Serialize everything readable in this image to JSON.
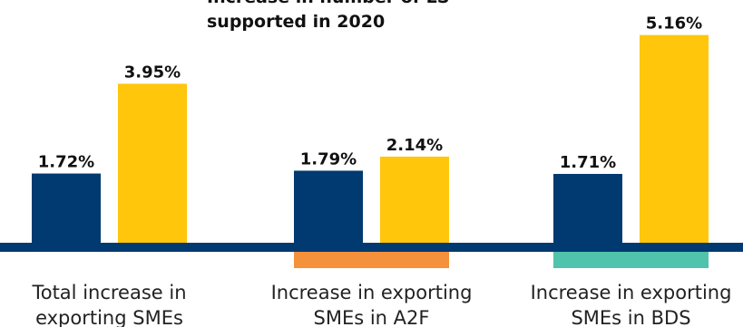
{
  "legend_title_lines": [
    "Increase in number of LS",
    "supported in 2020"
  ],
  "colors": {
    "navy": "#003a70",
    "yellow": "#ffc60b",
    "baseline": "#003a70",
    "a2f_tag": "#f4913a",
    "bds_tag": "#4fc3ab"
  },
  "chart_data": {
    "type": "bar",
    "categories": [
      "Total increase in exporting SMEs",
      "Increase in exporting SMEs in A2F",
      "Increase in exporting SMEs in BDS"
    ],
    "category_lines": [
      [
        "Total increase in",
        "exporting SMEs"
      ],
      [
        "Increase in exporting",
        "SMEs in A2F"
      ],
      [
        "Increase in exporting",
        "SMEs in BDS"
      ]
    ],
    "series": [
      {
        "values": [
          1.72,
          1.79,
          1.71
        ],
        "labels": [
          "1.72%",
          "1.79%",
          "1.71%"
        ],
        "color": "#003a70"
      },
      {
        "name": "Increase in number of LS supported in 2020",
        "values": [
          3.95,
          2.14,
          5.16
        ],
        "labels": [
          "3.95%",
          "2.14%",
          "5.16%"
        ],
        "color": "#ffc60b"
      }
    ],
    "ylim": [
      0,
      5.4
    ],
    "grid": false
  }
}
